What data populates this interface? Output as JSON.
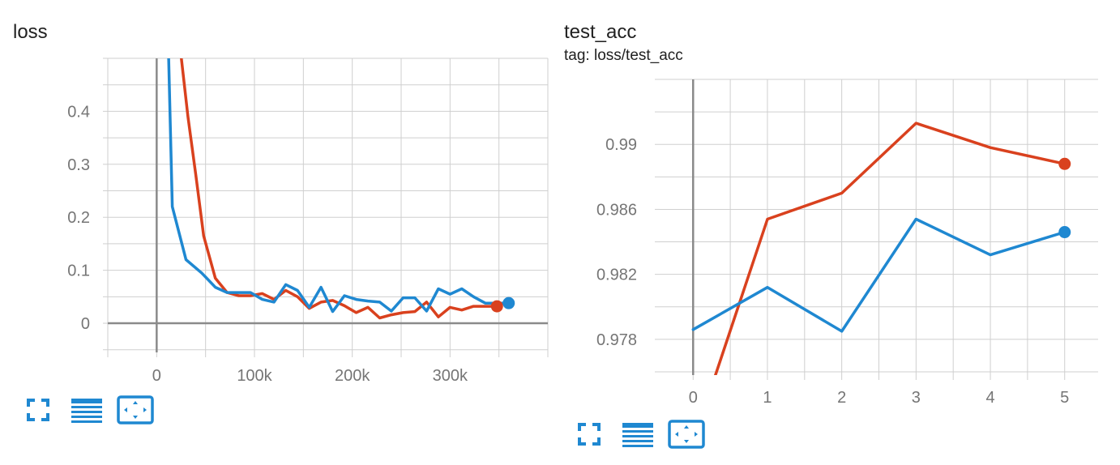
{
  "colors": {
    "run1": "#d9411e",
    "run2": "#1f88d1",
    "grid": "#cfcfcf",
    "axis": "#8a8a8a",
    "tick": "#757575",
    "icon": "#1f88d1"
  },
  "toolbar_icons": [
    "fullscreen-icon",
    "data-table-icon",
    "fit-domain-icon"
  ],
  "chart_data": [
    {
      "type": "line",
      "title": "loss",
      "subtitle": "",
      "xlabel": "",
      "ylabel": "",
      "xlim": [
        -50000,
        400000
      ],
      "ylim": [
        -0.055,
        0.5
      ],
      "x_ticks": [
        0,
        100000,
        200000,
        300000
      ],
      "x_tick_labels": [
        "0",
        "100k",
        "200k",
        "300k"
      ],
      "y_ticks": [
        0,
        0.1,
        0.2,
        0.3,
        0.4
      ],
      "y_tick_labels": [
        "0",
        "0.1",
        "0.2",
        "0.3",
        "0.4"
      ],
      "grid": true,
      "series": [
        {
          "color": "#d9411e",
          "x": [
            24000,
            32000,
            40000,
            48000,
            60000,
            72000,
            84000,
            96000,
            108000,
            120000,
            132000,
            144000,
            156000,
            168000,
            180000,
            192000,
            204000,
            216000,
            228000,
            240000,
            252000,
            264000,
            276000,
            288000,
            300000,
            312000,
            324000,
            336000,
            348000
          ],
          "y": [
            0.52,
            0.39,
            0.28,
            0.165,
            0.085,
            0.058,
            0.052,
            0.052,
            0.056,
            0.045,
            0.062,
            0.05,
            0.028,
            0.04,
            0.043,
            0.033,
            0.02,
            0.03,
            0.01,
            0.016,
            0.02,
            0.022,
            0.04,
            0.012,
            0.03,
            0.025,
            0.032,
            0.032,
            0.032
          ]
        },
        {
          "color": "#1f88d1",
          "x": [
            12000,
            16000,
            30000,
            46000,
            60000,
            72000,
            84000,
            96000,
            108000,
            120000,
            132000,
            144000,
            156000,
            168000,
            180000,
            192000,
            204000,
            216000,
            228000,
            240000,
            252000,
            264000,
            276000,
            288000,
            300000,
            312000,
            324000,
            336000,
            348000,
            360000
          ],
          "y": [
            0.52,
            0.22,
            0.12,
            0.095,
            0.068,
            0.058,
            0.058,
            0.058,
            0.045,
            0.04,
            0.073,
            0.062,
            0.03,
            0.068,
            0.022,
            0.052,
            0.045,
            0.042,
            0.04,
            0.023,
            0.048,
            0.048,
            0.023,
            0.065,
            0.055,
            0.065,
            0.05,
            0.038,
            0.038,
            0.038
          ]
        }
      ]
    },
    {
      "type": "line",
      "title": "test_acc",
      "subtitle": "tag: loss/test_acc",
      "xlabel": "",
      "ylabel": "",
      "xlim": [
        -0.45,
        5.45
      ],
      "ylim": [
        0.9758,
        0.994
      ],
      "x_ticks": [
        0,
        1,
        2,
        3,
        4,
        5
      ],
      "x_tick_labels": [
        "0",
        "1",
        "2",
        "3",
        "4",
        "5"
      ],
      "y_ticks": [
        0.978,
        0.982,
        0.986,
        0.99
      ],
      "y_tick_labels": [
        "0.978",
        "0.982",
        "0.986",
        "0.99"
      ],
      "grid": true,
      "series": [
        {
          "color": "#d9411e",
          "x": [
            0.3,
            1,
            2,
            3,
            4,
            5
          ],
          "y": [
            0.9758,
            0.9854,
            0.987,
            0.9913,
            0.9898,
            0.9888
          ]
        },
        {
          "color": "#1f88d1",
          "x": [
            0,
            1,
            2,
            3,
            4,
            5
          ],
          "y": [
            0.9786,
            0.9812,
            0.9785,
            0.9854,
            0.9832,
            0.9846
          ]
        }
      ]
    }
  ]
}
